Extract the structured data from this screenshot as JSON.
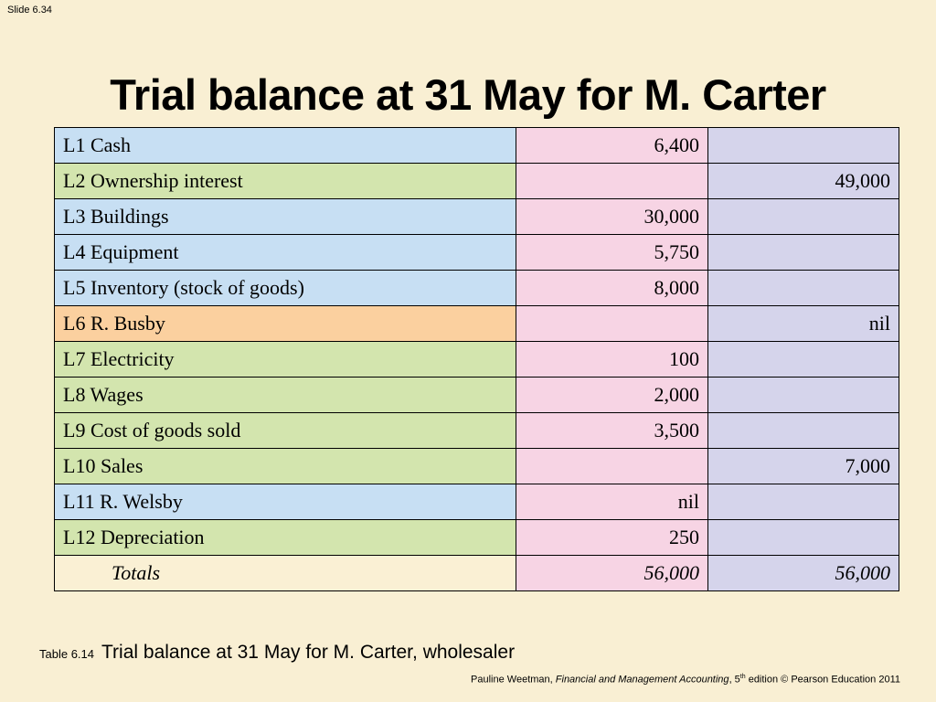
{
  "slide_label": "Slide 6.34",
  "title": "Trial balance at 31 May for M. Carter",
  "rows": [
    {
      "account": "L1  Cash",
      "debit": "6,400",
      "credit": "",
      "color": "#c7dff3"
    },
    {
      "account": "L2  Ownership interest",
      "debit": "",
      "credit": "49,000",
      "color": "#d3e5ae"
    },
    {
      "account": "L3  Buildings",
      "debit": "30,000",
      "credit": "",
      "color": "#c7dff3"
    },
    {
      "account": "L4  Equipment",
      "debit": "5,750",
      "credit": "",
      "color": "#c7dff3"
    },
    {
      "account": "L5  Inventory (stock of goods)",
      "debit": "8,000",
      "credit": "",
      "color": "#c7dff3"
    },
    {
      "account": "L6  R. Busby",
      "debit": "",
      "credit": "nil",
      "color": "#fbd09f"
    },
    {
      "account": "L7  Electricity",
      "debit": "100",
      "credit": "",
      "color": "#d3e5ae"
    },
    {
      "account": "L8  Wages",
      "debit": "2,000",
      "credit": "",
      "color": "#d3e5ae"
    },
    {
      "account": "L9  Cost of goods sold",
      "debit": "3,500",
      "credit": "",
      "color": "#d3e5ae"
    },
    {
      "account": "L10 Sales",
      "debit": "",
      "credit": "7,000",
      "color": "#d3e5ae"
    },
    {
      "account": "L11 R. Welsby",
      "debit": "nil",
      "credit": "",
      "color": "#c7dff3"
    },
    {
      "account": "L12 Depreciation",
      "debit": "250",
      "credit": "",
      "color": "#d3e5ae"
    }
  ],
  "totals": {
    "label": "Totals",
    "debit": "56,000",
    "credit": "56,000"
  },
  "caption": {
    "ref": "Table 6.14",
    "text": "Trial balance at 31 May for M. Carter, wholesaler"
  },
  "footer": {
    "author": "Pauline Weetman, ",
    "book": "Financial and Management Accounting",
    "edition_prefix": ", 5",
    "edition_sup": "th",
    "rest": " edition © Pearson Education 2011"
  },
  "colors": {
    "background": "#f9efd3",
    "debit_column": "#f7d4e4",
    "credit_column": "#d5d4eb"
  }
}
